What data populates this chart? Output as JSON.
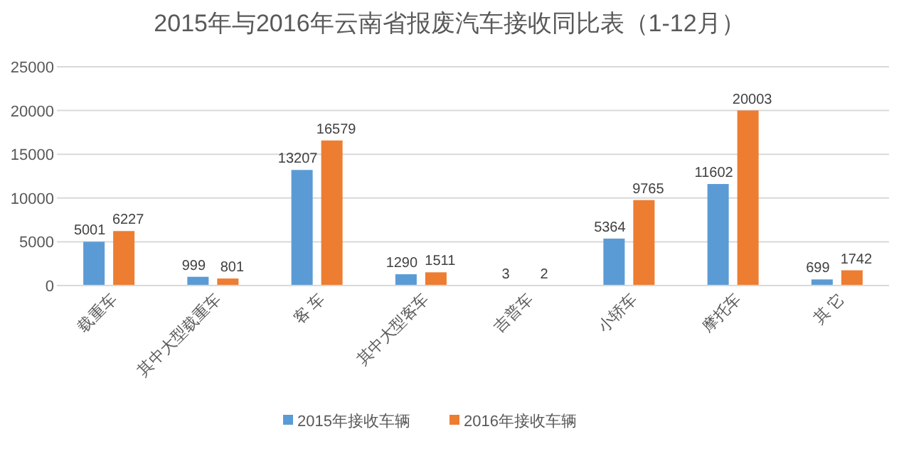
{
  "chart_data": {
    "type": "bar",
    "title": "2015年与2016年云南省报废汽车接收同比表（1-12月）",
    "categories": [
      "载重车",
      "其中大型载重车",
      "客  车",
      "其中大型客车",
      "吉普车",
      "小轿车",
      "摩托车",
      "其  它"
    ],
    "series": [
      {
        "name": "2015年接收车辆",
        "color": "#5b9bd5",
        "values": [
          5001,
          999,
          13207,
          1290,
          3,
          5364,
          11602,
          699
        ]
      },
      {
        "name": "2016年接收车辆",
        "color": "#ed7d31",
        "values": [
          6227,
          801,
          16579,
          1511,
          2,
          9765,
          20003,
          1742
        ]
      }
    ],
    "ylim": [
      0,
      25000
    ],
    "yticks": [
      0,
      5000,
      10000,
      15000,
      20000,
      25000
    ],
    "grid": "y",
    "legend": "bottom",
    "data_labels": true
  }
}
